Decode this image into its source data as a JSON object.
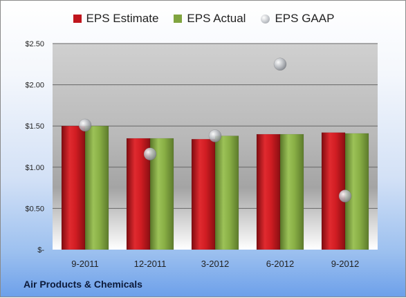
{
  "chart_data": {
    "type": "bar",
    "categories": [
      "9-2011",
      "12-2011",
      "3-2012",
      "6-2012",
      "9-2012"
    ],
    "series": [
      {
        "name": "EPS Estimate",
        "kind": "bar",
        "color": "#c0151d",
        "values": [
          1.5,
          1.35,
          1.34,
          1.4,
          1.42
        ]
      },
      {
        "name": "EPS Actual",
        "kind": "bar",
        "color": "#80a43f",
        "values": [
          1.5,
          1.35,
          1.38,
          1.4,
          1.41
        ]
      },
      {
        "name": "EPS GAAP",
        "kind": "scatter",
        "color": "#a9adb3",
        "values": [
          1.51,
          1.16,
          1.38,
          2.25,
          0.65
        ]
      }
    ],
    "yticks": [
      {
        "value": 0,
        "label": "$-"
      },
      {
        "value": 0.5,
        "label": "$0.50"
      },
      {
        "value": 1.0,
        "label": "$1.00"
      },
      {
        "value": 1.5,
        "label": "$1.50"
      },
      {
        "value": 2.0,
        "label": "$2.00"
      },
      {
        "value": 2.5,
        "label": "$2.50"
      }
    ],
    "ylim": [
      0,
      2.5
    ],
    "grid": true,
    "legend": "top-center"
  },
  "company": "Air Products & Chemicals"
}
